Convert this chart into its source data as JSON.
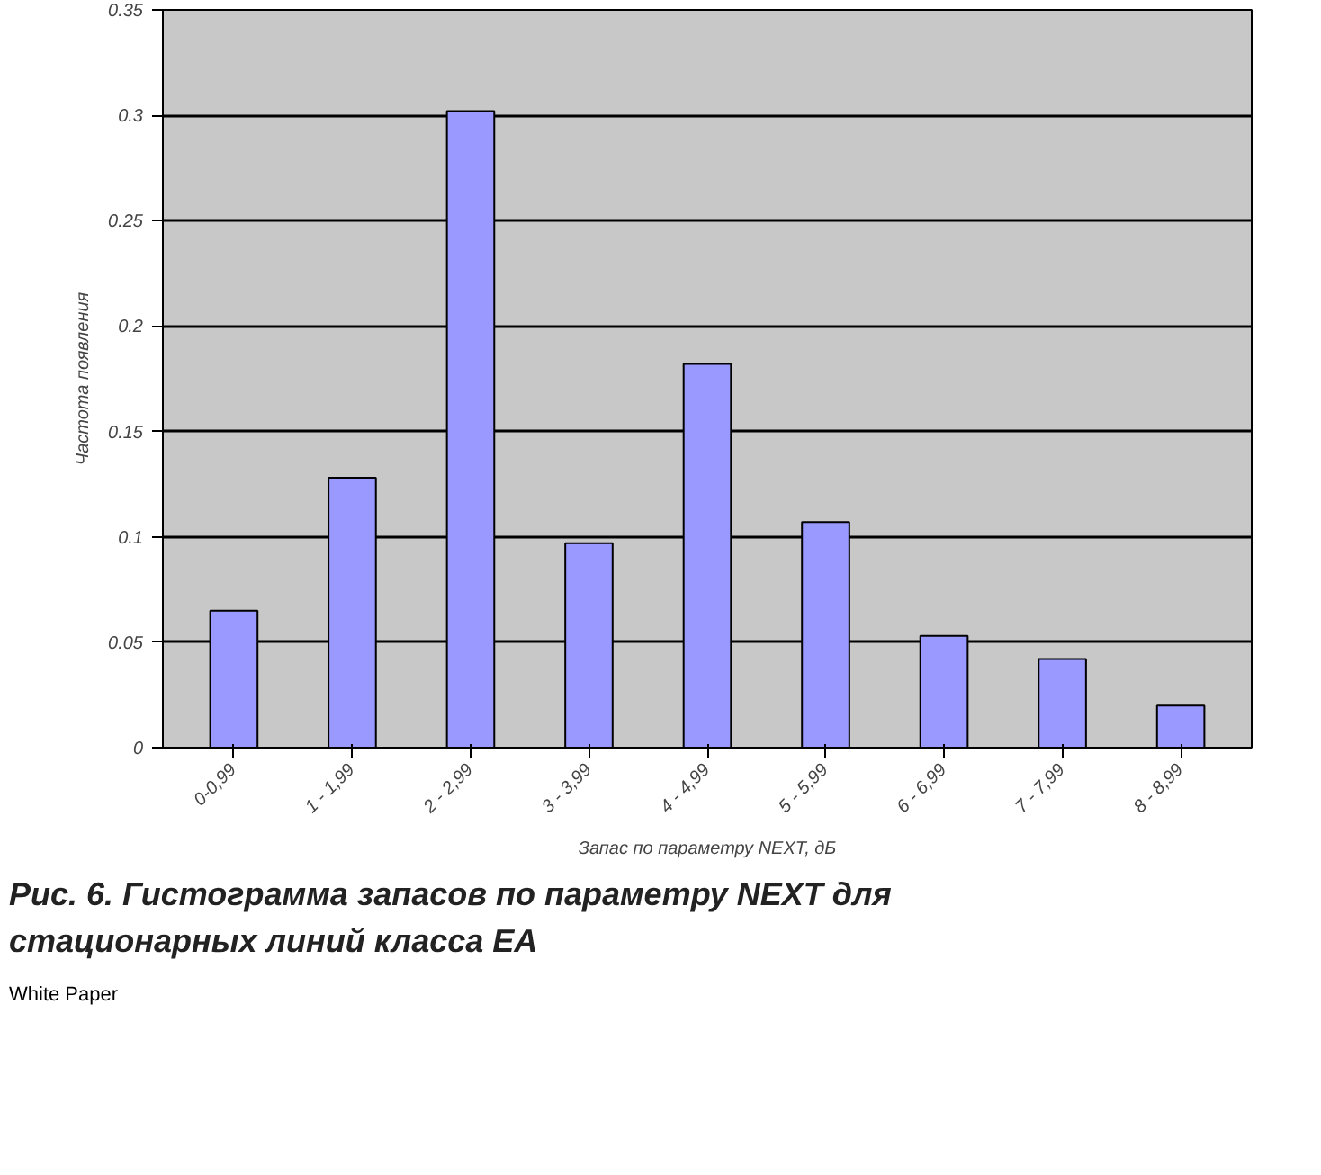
{
  "chart_data": {
    "type": "bar",
    "title": "Рис. 6. Гистограмма запасов по параметру NEXT для стационарных линий класса EA",
    "xlabel": "Запас по параметру NEXT, дБ",
    "ylabel": "Частота появления",
    "categories": [
      "0-0,99",
      "1 - 1,99",
      "2 - 2,99",
      "3 - 3,99",
      "4 - 4,99",
      "5 - 5,99",
      "6 - 6,99",
      "7 - 7,99",
      "8 - 8,99"
    ],
    "values": [
      0.065,
      0.128,
      0.302,
      0.097,
      0.182,
      0.107,
      0.053,
      0.042,
      0.02
    ],
    "color": "#9999ff",
    "ylim": [
      0,
      0.35
    ],
    "yticks": [
      0,
      0.05,
      0.1,
      0.15,
      0.2,
      0.25,
      0.3,
      0.35
    ],
    "grid": "y",
    "annotations": [
      "White Paper"
    ]
  }
}
